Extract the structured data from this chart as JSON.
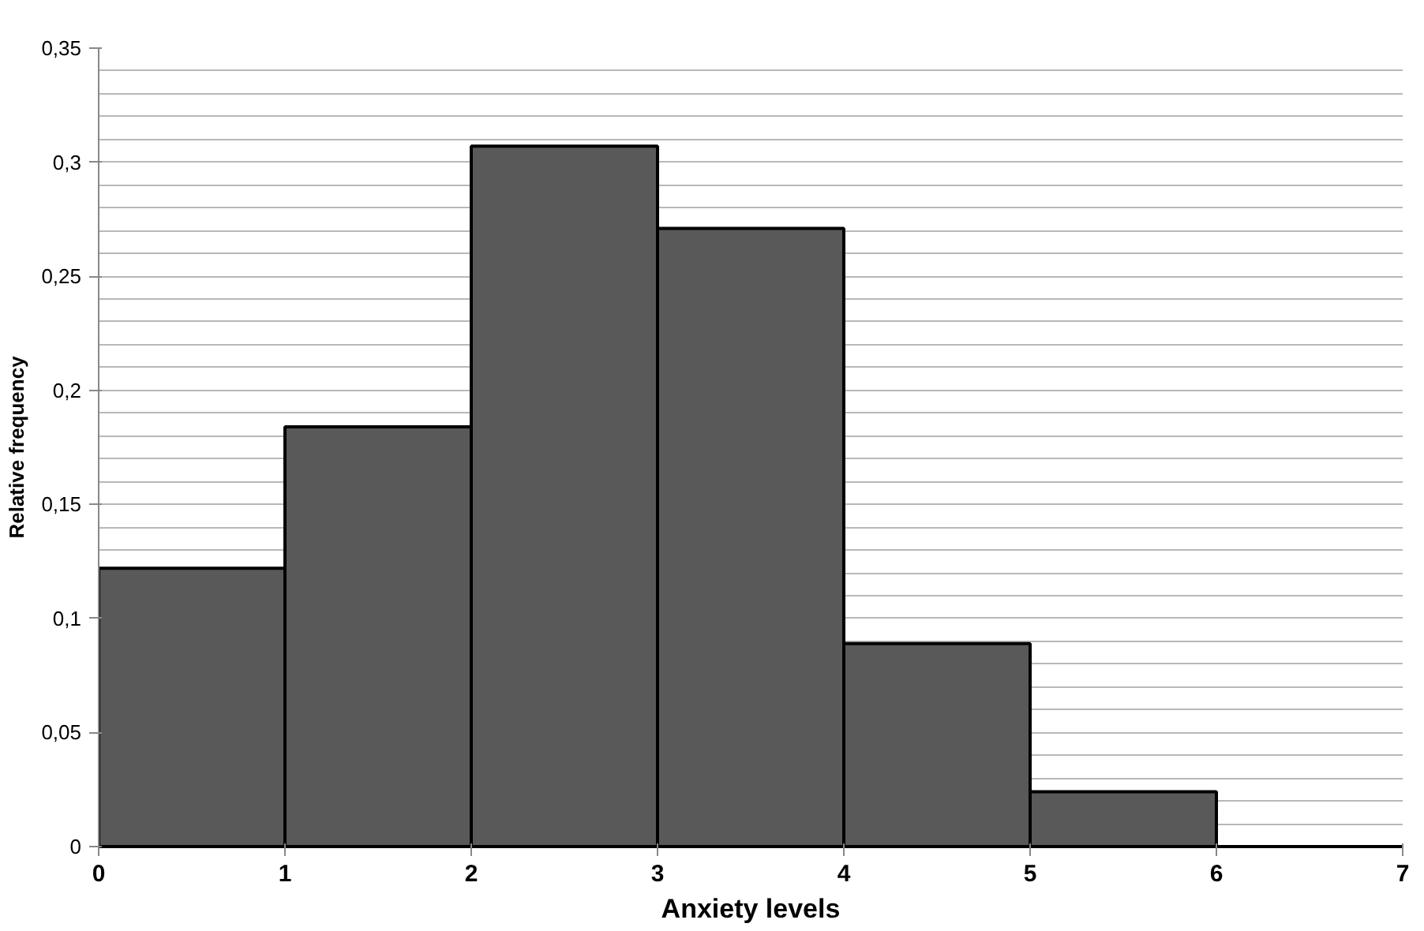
{
  "chart_data": {
    "type": "histogram",
    "xlabel": "Anxiety levels",
    "ylabel": "Relative frequency",
    "bins": [
      0,
      1,
      2,
      3,
      4,
      5,
      6
    ],
    "values": [
      0.122,
      0.184,
      0.307,
      0.271,
      0.089,
      0.024
    ],
    "color": "#595959",
    "xlim": [
      0,
      7
    ],
    "xticks": [
      0,
      1,
      2,
      3,
      4,
      5,
      6,
      7
    ],
    "ylim": [
      0,
      0.35
    ],
    "yticks": [
      {
        "value": 0,
        "label": "0"
      },
      {
        "value": 0.01,
        "label": null
      },
      {
        "value": 0.02,
        "label": null
      },
      {
        "value": 0.03,
        "label": null
      },
      {
        "value": 0.04,
        "label": null
      },
      {
        "value": 0.05,
        "label": "0,05"
      },
      {
        "value": 0.06,
        "label": null
      },
      {
        "value": 0.07,
        "label": null
      },
      {
        "value": 0.08,
        "label": null
      },
      {
        "value": 0.09,
        "label": null
      },
      {
        "value": 0.1,
        "label": "0,1"
      },
      {
        "value": 0.11,
        "label": null
      },
      {
        "value": 0.12,
        "label": null
      },
      {
        "value": 0.13,
        "label": null
      },
      {
        "value": 0.14,
        "label": null
      },
      {
        "value": 0.15,
        "label": "0,15"
      },
      {
        "value": 0.16,
        "label": null
      },
      {
        "value": 0.17,
        "label": null
      },
      {
        "value": 0.18,
        "label": null
      },
      {
        "value": 0.19,
        "label": null
      },
      {
        "value": 0.2,
        "label": "0,2"
      },
      {
        "value": 0.21,
        "label": null
      },
      {
        "value": 0.22,
        "label": null
      },
      {
        "value": 0.23,
        "label": null
      },
      {
        "value": 0.24,
        "label": null
      },
      {
        "value": 0.25,
        "label": "0,25"
      },
      {
        "value": 0.26,
        "label": null
      },
      {
        "value": 0.27,
        "label": null
      },
      {
        "value": 0.28,
        "label": null
      },
      {
        "value": 0.29,
        "label": null
      },
      {
        "value": 0.3,
        "label": "0,3"
      },
      {
        "value": 0.31,
        "label": null
      },
      {
        "value": 0.32,
        "label": null
      },
      {
        "value": 0.33,
        "label": null
      },
      {
        "value": 0.34,
        "label": null
      },
      {
        "value": 0.35,
        "label": "0,35"
      }
    ],
    "grid": "y"
  }
}
